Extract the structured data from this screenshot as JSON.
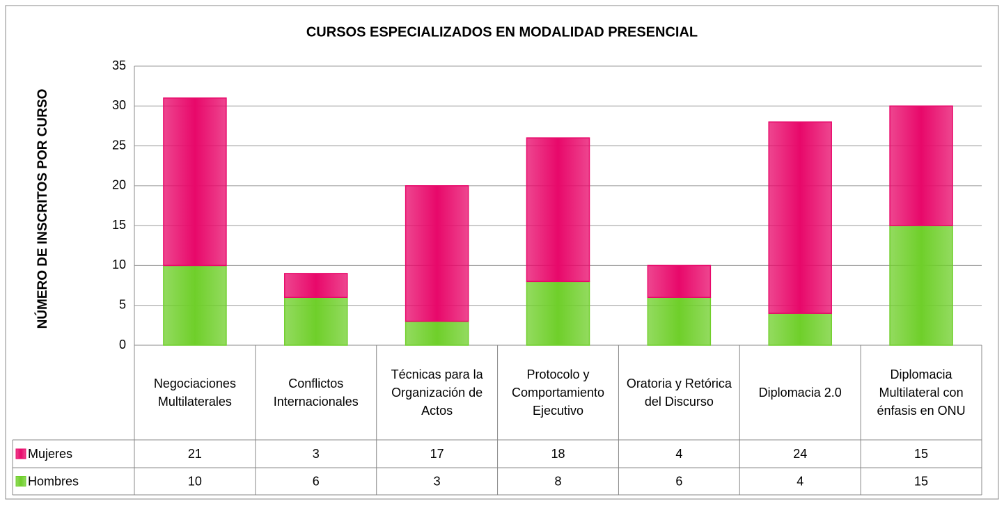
{
  "chart_data": {
    "type": "stacked-bar",
    "title": "CURSOS ESPECIALIZADOS EN MODALIDAD PRESENCIAL",
    "y_label": "NÚMERO DE INSCRITOS POR CURSO",
    "categories": [
      "Negociaciones Multilaterales",
      "Conflictos Internacionales",
      "Técnicas para la Organización de Actos",
      "Protocolo y Comportamiento Ejecutivo",
      "Oratoria y Retórica del Discurso",
      "Diplomacia 2.0",
      "Diplomacia Multilateral con énfasis en ONU"
    ],
    "series": [
      {
        "name": "Hombres",
        "color": "#6fcf2a",
        "values": [
          10,
          6,
          3,
          8,
          6,
          4,
          15
        ]
      },
      {
        "name": "Mujeres",
        "color": "#e8086a",
        "values": [
          21,
          3,
          17,
          18,
          4,
          24,
          15
        ]
      }
    ],
    "ylim": [
      0,
      35
    ],
    "yticks": [
      0,
      5,
      10,
      15,
      20,
      25,
      30,
      35
    ],
    "grid": true
  }
}
